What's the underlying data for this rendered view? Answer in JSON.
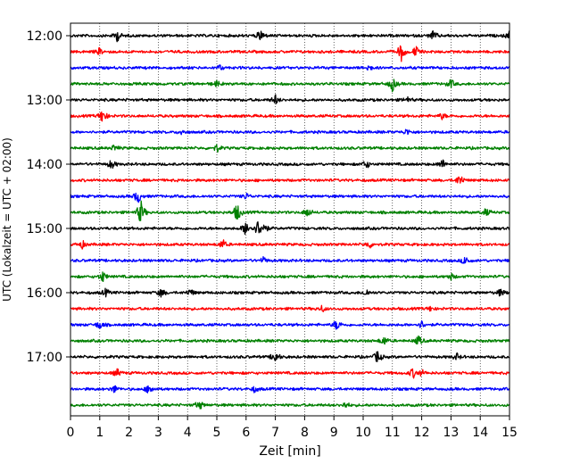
{
  "chart_data": {
    "type": "line",
    "title": "",
    "xlabel": "Zeit  [min]",
    "ylabel": "UTC (Lokalzeit = UTC + 02:00)",
    "xlim": [
      0,
      15
    ],
    "x_ticks": [
      "0",
      "1",
      "2",
      "3",
      "4",
      "5",
      "6",
      "7",
      "8",
      "9",
      "10",
      "11",
      "12",
      "13",
      "14",
      "15"
    ],
    "y_ticks": [
      "12:00",
      "13:00",
      "14:00",
      "15:00",
      "16:00",
      "17:00"
    ],
    "grid_x": true,
    "legend": "none",
    "row_colors": [
      "#000000",
      "#ff0000",
      "#0000ff",
      "#008000"
    ],
    "rows": [
      {
        "start": "12:00",
        "color": "#000000",
        "events": [
          [
            1.6,
            0.9
          ],
          [
            6.5,
            1.0
          ],
          [
            12.4,
            0.8
          ],
          [
            15.0,
            0.7
          ]
        ]
      },
      {
        "start": "12:15",
        "color": "#ff0000",
        "events": [
          [
            1.0,
            0.6
          ],
          [
            11.3,
            1.5
          ],
          [
            11.8,
            0.9
          ]
        ]
      },
      {
        "start": "12:30",
        "color": "#0000ff",
        "events": [
          [
            5.1,
            0.4
          ],
          [
            10.2,
            0.5
          ]
        ]
      },
      {
        "start": "12:45",
        "color": "#008000",
        "events": [
          [
            5.0,
            0.5
          ],
          [
            11.0,
            1.2
          ],
          [
            13.0,
            0.7
          ]
        ]
      },
      {
        "start": "13:00",
        "color": "#000000",
        "events": [
          [
            7.0,
            0.8
          ],
          [
            11.5,
            0.5
          ]
        ]
      },
      {
        "start": "13:15",
        "color": "#ff0000",
        "events": [
          [
            1.1,
            1.3
          ],
          [
            12.7,
            0.5
          ]
        ]
      },
      {
        "start": "13:30",
        "color": "#0000ff",
        "events": [
          [
            3.8,
            0.4
          ],
          [
            11.5,
            0.5
          ]
        ]
      },
      {
        "start": "13:45",
        "color": "#008000",
        "events": [
          [
            1.5,
            0.5
          ],
          [
            5.0,
            0.6
          ]
        ]
      },
      {
        "start": "14:00",
        "color": "#000000",
        "events": [
          [
            1.4,
            0.8
          ],
          [
            10.1,
            0.7
          ],
          [
            12.7,
            0.8
          ]
        ]
      },
      {
        "start": "14:15",
        "color": "#ff0000",
        "events": [
          [
            13.3,
            1.0
          ]
        ]
      },
      {
        "start": "14:30",
        "color": "#0000ff",
        "events": [
          [
            2.3,
            1.2
          ],
          [
            6.0,
            0.5
          ]
        ]
      },
      {
        "start": "14:45",
        "color": "#008000",
        "events": [
          [
            2.4,
            2.0
          ],
          [
            5.7,
            1.6
          ],
          [
            8.1,
            0.8
          ],
          [
            14.2,
            0.6
          ]
        ]
      },
      {
        "start": "15:00",
        "color": "#000000",
        "events": [
          [
            6.0,
            1.3
          ],
          [
            6.4,
            1.2
          ],
          [
            6.6,
            1.0
          ]
        ]
      },
      {
        "start": "15:15",
        "color": "#ff0000",
        "events": [
          [
            0.4,
            0.6
          ],
          [
            5.2,
            0.8
          ],
          [
            10.2,
            0.6
          ]
        ]
      },
      {
        "start": "15:30",
        "color": "#0000ff",
        "events": [
          [
            6.6,
            0.5
          ],
          [
            13.5,
            0.8
          ]
        ]
      },
      {
        "start": "15:45",
        "color": "#008000",
        "events": [
          [
            1.1,
            0.9
          ],
          [
            13.0,
            0.5
          ]
        ]
      },
      {
        "start": "16:00",
        "color": "#000000",
        "events": [
          [
            1.2,
            0.6
          ],
          [
            3.1,
            0.7
          ],
          [
            4.1,
            0.6
          ],
          [
            10.1,
            0.6
          ],
          [
            14.7,
            0.6
          ]
        ]
      },
      {
        "start": "16:15",
        "color": "#ff0000",
        "events": [
          [
            8.6,
            0.5
          ],
          [
            12.3,
            0.4
          ]
        ]
      },
      {
        "start": "16:30",
        "color": "#0000ff",
        "events": [
          [
            1.0,
            0.7
          ],
          [
            9.1,
            0.9
          ],
          [
            12.0,
            0.6
          ]
        ]
      },
      {
        "start": "16:45",
        "color": "#008000",
        "events": [
          [
            10.7,
            0.8
          ],
          [
            11.9,
            0.8
          ]
        ]
      },
      {
        "start": "17:00",
        "color": "#000000",
        "events": [
          [
            7.0,
            1.0
          ],
          [
            10.5,
            1.1
          ],
          [
            13.2,
            0.5
          ]
        ]
      },
      {
        "start": "17:15",
        "color": "#ff0000",
        "events": [
          [
            1.6,
            0.6
          ],
          [
            11.7,
            0.8
          ],
          [
            12.0,
            0.5
          ]
        ]
      },
      {
        "start": "17:30",
        "color": "#0000ff",
        "events": [
          [
            1.5,
            0.6
          ],
          [
            2.7,
            0.9
          ],
          [
            6.3,
            0.5
          ]
        ]
      },
      {
        "start": "17:45",
        "color": "#008000",
        "events": [
          [
            4.4,
            0.8
          ],
          [
            9.4,
            0.5
          ]
        ]
      }
    ]
  }
}
